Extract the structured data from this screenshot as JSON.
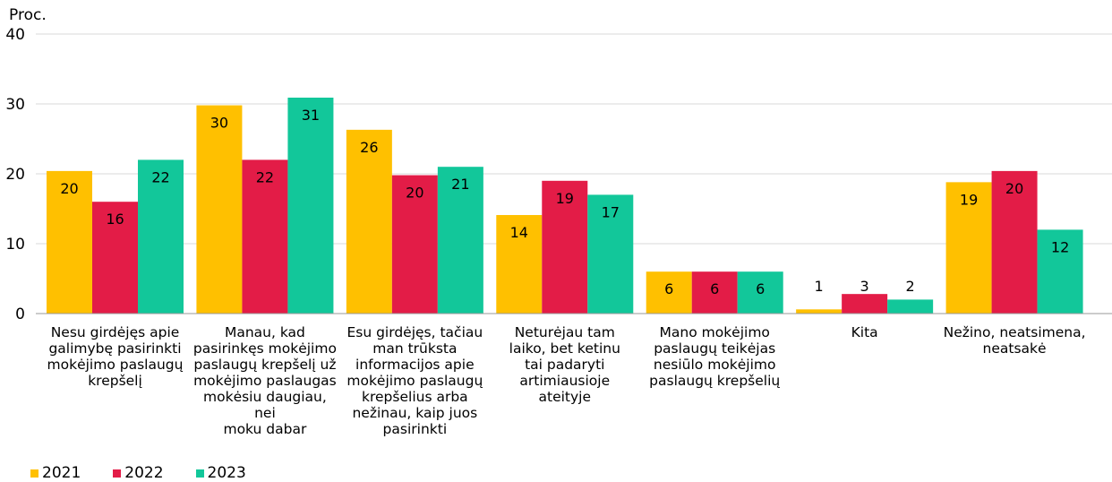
{
  "chart_data": {
    "type": "bar",
    "ylabel": "Proc.",
    "ylim": [
      0,
      40
    ],
    "yticks": [
      "0",
      "10",
      "20",
      "30",
      "40"
    ],
    "grid": true,
    "legend_position": "bottom-left",
    "categories": [
      "Nesu girdėjęs apie galimybę pasirinkti mokėjimo paslaugų krepšelį",
      "Manau, kad pasirinkęs mokėjimo paslaugų krepšelį už mokėjimo paslaugas mokėsiu daugiau, nei moku dabar",
      "Esu girdėjęs, tačiau man trūksta informacijos apie mokėjimo paslaugų krepšelius arba nežinau, kaip juos pasirinkti",
      "Neturėjau tam laiko, bet ketinu tai padaryti artimiausioje ateityje",
      "Mano mokėjimo paslaugų teikėjas nesiūlo mokėjimo paslaugų krepšelių",
      "Kita",
      "Nežino, neatsimena, neatsakė"
    ],
    "category_lines": [
      "Nesu girdėjęs apie\ngalimybę pasirinkti\nmokėjimo paslaugų\nkrepšelį",
      "Manau, kad\npasirinkęs mokėjimo\npaslaugų krepšelį už\nmokėjimo paslaugas\nmokėsiu daugiau, nei\nmoku dabar",
      "Esu girdėjęs, tačiau\nman trūksta\ninformacijos apie\nmokėjimo paslaugų\nkrepšelius arba\nnežinau, kaip juos\npasirinkti",
      "Neturėjau tam\nlaiko, bet ketinu\ntai padaryti\nartimiausioje\nateityje",
      "Mano mokėjimo\npaslaugų teikėjas\nnesiūlo mokėjimo\npaslaugų krepšelių",
      "Kita",
      "Nežino, neatsimena,\nneatsakė"
    ],
    "series": [
      {
        "name": "2021",
        "color": "#FFC000",
        "values": [
          20.4,
          29.8,
          26.3,
          14.1,
          6,
          0.6,
          18.8
        ],
        "labels": [
          "20",
          "30",
          "26",
          "14",
          "6",
          "1",
          "19"
        ]
      },
      {
        "name": "2022",
        "color": "#E31C47",
        "values": [
          16,
          22,
          19.8,
          19,
          6,
          2.8,
          20.4
        ],
        "labels": [
          "16",
          "22",
          "20",
          "19",
          "6",
          "3",
          "20"
        ]
      },
      {
        "name": "2023",
        "color": "#12C79A",
        "values": [
          22,
          30.9,
          21,
          17,
          6,
          2,
          12
        ],
        "labels": [
          "22",
          "31",
          "21",
          "17",
          "6",
          "2",
          "12"
        ]
      }
    ]
  }
}
